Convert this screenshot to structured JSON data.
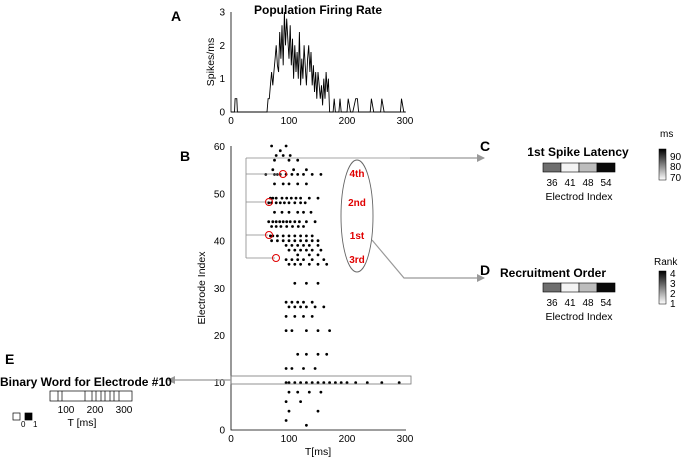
{
  "panels": {
    "A": {
      "letter": "A",
      "title": "Population Firing Rate",
      "ylabel": "Spikes/ms",
      "xticks": [
        "0",
        "100",
        "200",
        "300"
      ],
      "yticks": [
        "0",
        "1",
        "2",
        "3"
      ]
    },
    "B": {
      "letter": "B",
      "ylabel": "Electrode Index",
      "xlabel": "T[ms]",
      "xticks": [
        "0",
        "100",
        "200",
        "300"
      ],
      "yticks": [
        "0",
        "10",
        "20",
        "30",
        "40",
        "50",
        "60"
      ],
      "order_labels": [
        "4th",
        "2nd",
        "1st",
        "3rd"
      ]
    },
    "C": {
      "letter": "C",
      "title": "1st Spike Latency",
      "xticks": [
        "36",
        "41",
        "48",
        "54"
      ],
      "xlabel": "Electrod Index",
      "colorbar_unit": "ms",
      "colorbar_ticks": [
        "90",
        "80",
        "70"
      ],
      "cell_colors": [
        "#6e6e6e",
        "#f4f4f4",
        "#bdbdbd",
        "#0a0a0a"
      ]
    },
    "D": {
      "letter": "D",
      "title": "Recruitment Order",
      "xticks": [
        "36",
        "41",
        "48",
        "54"
      ],
      "xlabel": "Electrod Index",
      "colorbar_unit": "Rank",
      "colorbar_ticks": [
        "4",
        "3",
        "2",
        "1"
      ],
      "cell_colors": [
        "#6e6e6e",
        "#f4f4f4",
        "#bdbdbd",
        "#0a0a0a"
      ]
    },
    "E": {
      "letter": "E",
      "title": "Binary Word for Electrode #10",
      "xticks": [
        "100",
        "200",
        "300"
      ],
      "xlabel": "T [ms]",
      "legend": [
        "0",
        "1"
      ]
    }
  },
  "chart_data": [
    {
      "type": "line",
      "panel": "A",
      "title": "Population Firing Rate",
      "xlabel": "",
      "ylabel": "Spikes/ms",
      "xlim": [
        0,
        300
      ],
      "ylim": [
        0,
        3
      ],
      "series": [
        {
          "x": [
            0,
            6,
            7,
            10,
            11,
            62,
            64,
            66,
            68,
            70,
            72,
            74,
            76,
            78,
            80,
            82,
            84,
            86,
            88,
            90,
            92,
            94,
            96,
            98,
            100,
            102,
            104,
            106,
            108,
            110,
            112,
            114,
            116,
            118,
            120,
            122,
            124,
            126,
            128,
            130,
            132,
            134,
            136,
            138,
            140,
            142,
            144,
            146,
            148,
            150,
            152,
            154,
            156,
            158,
            160,
            162,
            164,
            166,
            168,
            170,
            172,
            176,
            178,
            180,
            186,
            188,
            190,
            200,
            202,
            206,
            208,
            210,
            215,
            218,
            220,
            240,
            242,
            246,
            248,
            250,
            258,
            260,
            264,
            266,
            268,
            292,
            294,
            298,
            300
          ],
          "y": [
            0,
            0,
            0.4,
            0.4,
            0,
            0,
            0.4,
            0.4,
            0.8,
            1.2,
            0.8,
            1.2,
            1.6,
            2.0,
            1.4,
            1.2,
            2.4,
            1.6,
            2.6,
            1.4,
            3.0,
            2.0,
            2.8,
            2.2,
            1.6,
            2.6,
            1.4,
            2.2,
            1.0,
            2.0,
            1.2,
            1.8,
            1.0,
            2.4,
            0.8,
            1.6,
            1.0,
            2.0,
            1.4,
            0.8,
            1.6,
            2.0,
            1.2,
            1.8,
            0.8,
            1.4,
            0.6,
            1.2,
            0.4,
            1.2,
            0.8,
            0.4,
            0.8,
            0.2,
            1.0,
            0.4,
            1.2,
            0.6,
            1.0,
            0,
            0,
            0,
            0.4,
            0,
            0,
            0.4,
            0,
            0,
            0.4,
            0,
            0,
            0,
            0.4,
            0.4,
            0,
            0,
            0.4,
            0,
            0,
            0,
            0,
            0.4,
            0,
            0,
            0,
            0,
            0.4,
            0,
            0
          ]
        }
      ]
    },
    {
      "type": "scatter",
      "panel": "B",
      "xlabel": "T[ms]",
      "ylabel": "Electrode Index",
      "xlim": [
        0,
        300
      ],
      "ylim": [
        0,
        60
      ],
      "series": [
        {
          "x": [
            70,
            85,
            95,
            78,
            90,
            102,
            75,
            100,
            115,
            72,
            108,
            130,
            60,
            75,
            80,
            85,
            95,
            105,
            115,
            125,
            140,
            155,
            75,
            90,
            100,
            115,
            130,
            68,
            72,
            78,
            88,
            96,
            104,
            112,
            120,
            135,
            150,
            65,
            70,
            78,
            85,
            92,
            100,
            110,
            120,
            128,
            75,
            88,
            100,
            115,
            125,
            138,
            65,
            72,
            78,
            84,
            90,
            96,
            102,
            110,
            118,
            130,
            145,
            70,
            78,
            86,
            96,
            106,
            116,
            125,
            68,
            72,
            80,
            90,
            100,
            110,
            120,
            130,
            140,
            70,
            80,
            90,
            100,
            110,
            120,
            130,
            140,
            150,
            95,
            105,
            115,
            125,
            135,
            150,
            100,
            110,
            120,
            130,
            140,
            155,
            115,
            135,
            150,
            95,
            105,
            115,
            125,
            140,
            160,
            100,
            110,
            120,
            135,
            150,
            165,
            110,
            130,
            150,
            95,
            105,
            115,
            125,
            140,
            100,
            110,
            120,
            130,
            145,
            160,
            95,
            110,
            125,
            140,
            95,
            105,
            130,
            150,
            170,
            95,
            100,
            110,
            120,
            130,
            140,
            150,
            160,
            170,
            180,
            190,
            200,
            215,
            235,
            260,
            290,
            115,
            130,
            150,
            165,
            95,
            105,
            125,
            145,
            100,
            115,
            135,
            155,
            95,
            120,
            100,
            150,
            95,
            130
          ],
          "y": [
            60,
            59,
            60,
            58,
            58,
            58,
            57,
            57,
            57,
            55,
            55,
            55,
            54,
            54,
            54,
            54,
            54,
            54,
            54,
            54,
            54,
            54,
            52,
            52,
            52,
            52,
            52,
            49,
            49,
            49,
            49,
            49,
            49,
            49,
            49,
            49,
            49,
            48,
            48,
            48,
            48,
            48,
            48,
            48,
            48,
            48,
            46,
            46,
            46,
            46,
            46,
            46,
            44,
            44,
            44,
            44,
            44,
            44,
            44,
            44,
            44,
            44,
            44,
            43,
            43,
            43,
            43,
            43,
            43,
            43,
            41,
            41,
            41,
            41,
            41,
            41,
            41,
            41,
            41,
            40,
            40,
            40,
            40,
            40,
            40,
            40,
            40,
            40,
            39,
            39,
            39,
            39,
            39,
            39,
            38,
            38,
            38,
            38,
            38,
            38,
            37,
            37,
            37,
            36,
            36,
            36,
            36,
            36,
            36,
            35,
            35,
            35,
            35,
            35,
            35,
            31,
            31,
            31,
            27,
            27,
            27,
            27,
            27,
            26,
            26,
            26,
            26,
            26,
            26,
            24,
            24,
            24,
            24,
            21,
            21,
            21,
            21,
            21,
            10,
            10,
            10,
            10,
            10,
            10,
            10,
            10,
            10,
            10,
            10,
            10,
            10,
            10,
            10,
            10,
            16,
            16,
            16,
            16,
            13,
            13,
            13,
            13,
            8,
            8,
            8,
            8,
            6,
            6,
            4,
            4,
            2,
            1
          ]
        }
      ]
    }
  ]
}
